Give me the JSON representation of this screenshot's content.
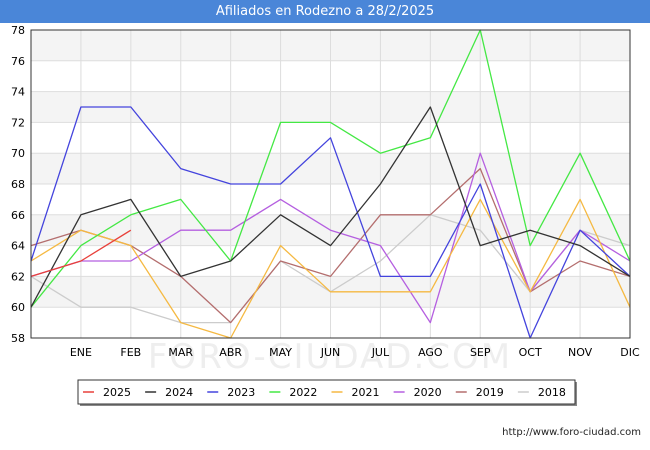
{
  "title": "Afiliados en Rodezno a 28/2/2025",
  "footer_url": "http://www.foro-ciudad.com",
  "watermark": "FORO-CIUDAD.COM",
  "chart_data": {
    "type": "line",
    "title": "Afiliados en Rodezno a 28/2/2025",
    "categories": [
      "",
      "ENE",
      "FEB",
      "MAR",
      "ABR",
      "MAY",
      "JUN",
      "JUL",
      "AGO",
      "SEP",
      "OCT",
      "NOV",
      "DIC"
    ],
    "ylim": [
      58,
      78
    ],
    "yticks": [
      58,
      60,
      62,
      64,
      66,
      68,
      70,
      72,
      74,
      76,
      78
    ],
    "grid": true,
    "legend_position": "bottom",
    "series": [
      {
        "name": "2025",
        "color": "#e8413b",
        "values": [
          62,
          63,
          65,
          null,
          null,
          null,
          null,
          null,
          null,
          null,
          null,
          null,
          null
        ]
      },
      {
        "name": "2024",
        "color": "#333333",
        "values": [
          60,
          66,
          67,
          62,
          63,
          66,
          64,
          68,
          73,
          64,
          65,
          64,
          62
        ]
      },
      {
        "name": "2023",
        "color": "#4444dd",
        "values": [
          63,
          73,
          73,
          69,
          68,
          68,
          71,
          62,
          62,
          68,
          58,
          65,
          62
        ]
      },
      {
        "name": "2022",
        "color": "#44e844",
        "values": [
          60,
          64,
          66,
          67,
          63,
          72,
          72,
          70,
          71,
          78,
          64,
          70,
          63
        ]
      },
      {
        "name": "2021",
        "color": "#f5b942",
        "values": [
          63,
          65,
          64,
          59,
          58,
          64,
          61,
          61,
          61,
          67,
          61,
          67,
          60
        ]
      },
      {
        "name": "2020",
        "color": "#b55fe0",
        "values": [
          62,
          63,
          63,
          65,
          65,
          67,
          65,
          64,
          59,
          70,
          61,
          65,
          63
        ]
      },
      {
        "name": "2019",
        "color": "#b46e6e",
        "values": [
          64,
          65,
          64,
          62,
          59,
          63,
          62,
          66,
          66,
          69,
          61,
          63,
          62
        ]
      },
      {
        "name": "2018",
        "color": "#cccccc",
        "values": [
          62,
          60,
          60,
          59,
          59,
          63,
          61,
          63,
          66,
          65,
          61,
          65,
          64
        ]
      }
    ]
  }
}
